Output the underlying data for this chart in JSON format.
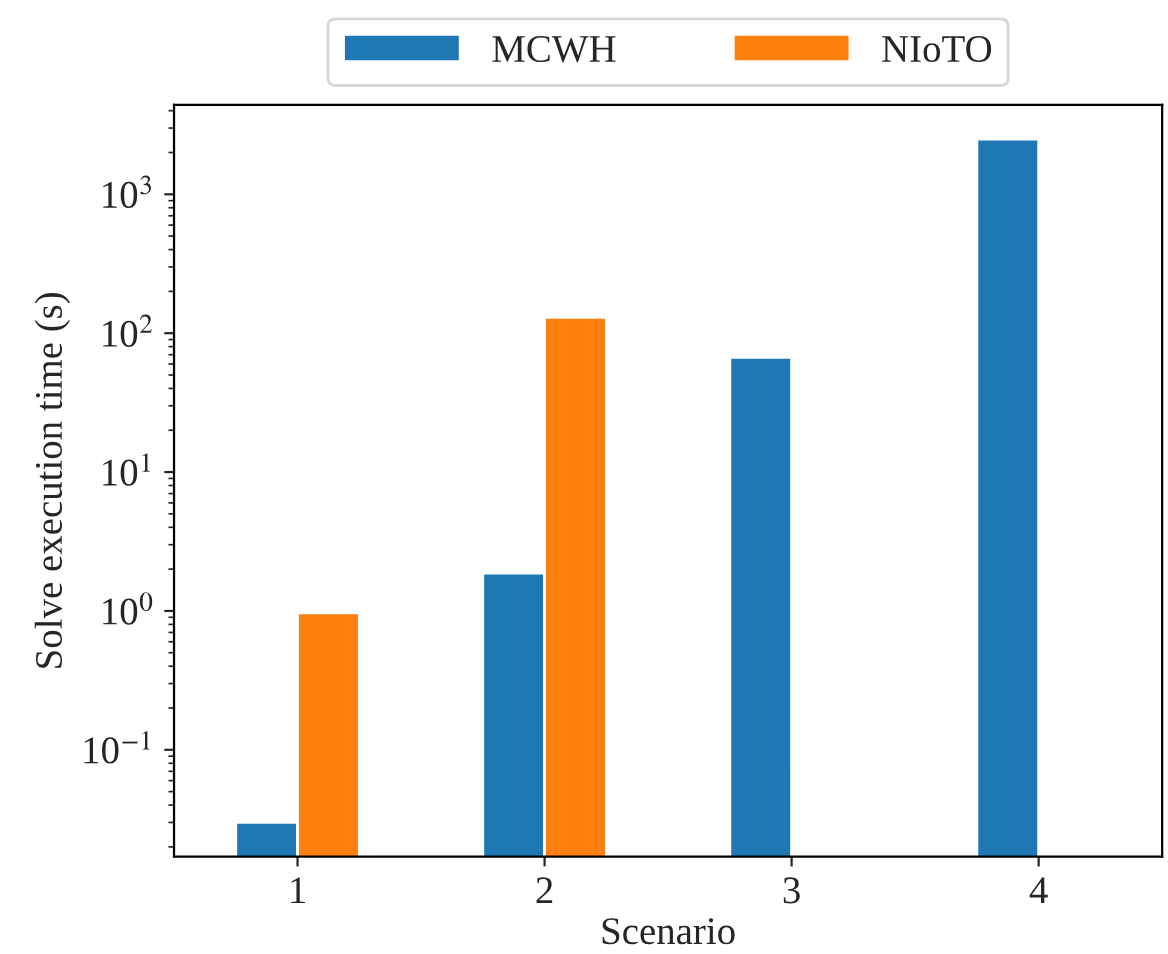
{
  "chart_data": {
    "type": "bar",
    "categories": [
      "1",
      "2",
      "3",
      "4"
    ],
    "series": [
      {
        "name": "MCWH",
        "color": "#1f77b4",
        "values": [
          0.03,
          1.87,
          67,
          2500
        ]
      },
      {
        "name": "NIoTO",
        "color": "#ff7f0e",
        "values": [
          0.97,
          130,
          null,
          null
        ]
      }
    ],
    "xlabel": "Scenario",
    "ylabel": "Solve execution time (s)",
    "log": "y",
    "ylim": [
      0.017,
      4400
    ],
    "yticks": [
      {
        "value": 0.1,
        "label": "10$^{−1}$"
      },
      {
        "value": 1,
        "label": "10$^{0}$"
      },
      {
        "value": 10,
        "label": "10$^{1}$"
      },
      {
        "value": 100,
        "label": "10$^{2}$"
      },
      {
        "value": 1000,
        "label": "10$^{3}$"
      }
    ],
    "legend": "top",
    "grid": false
  }
}
